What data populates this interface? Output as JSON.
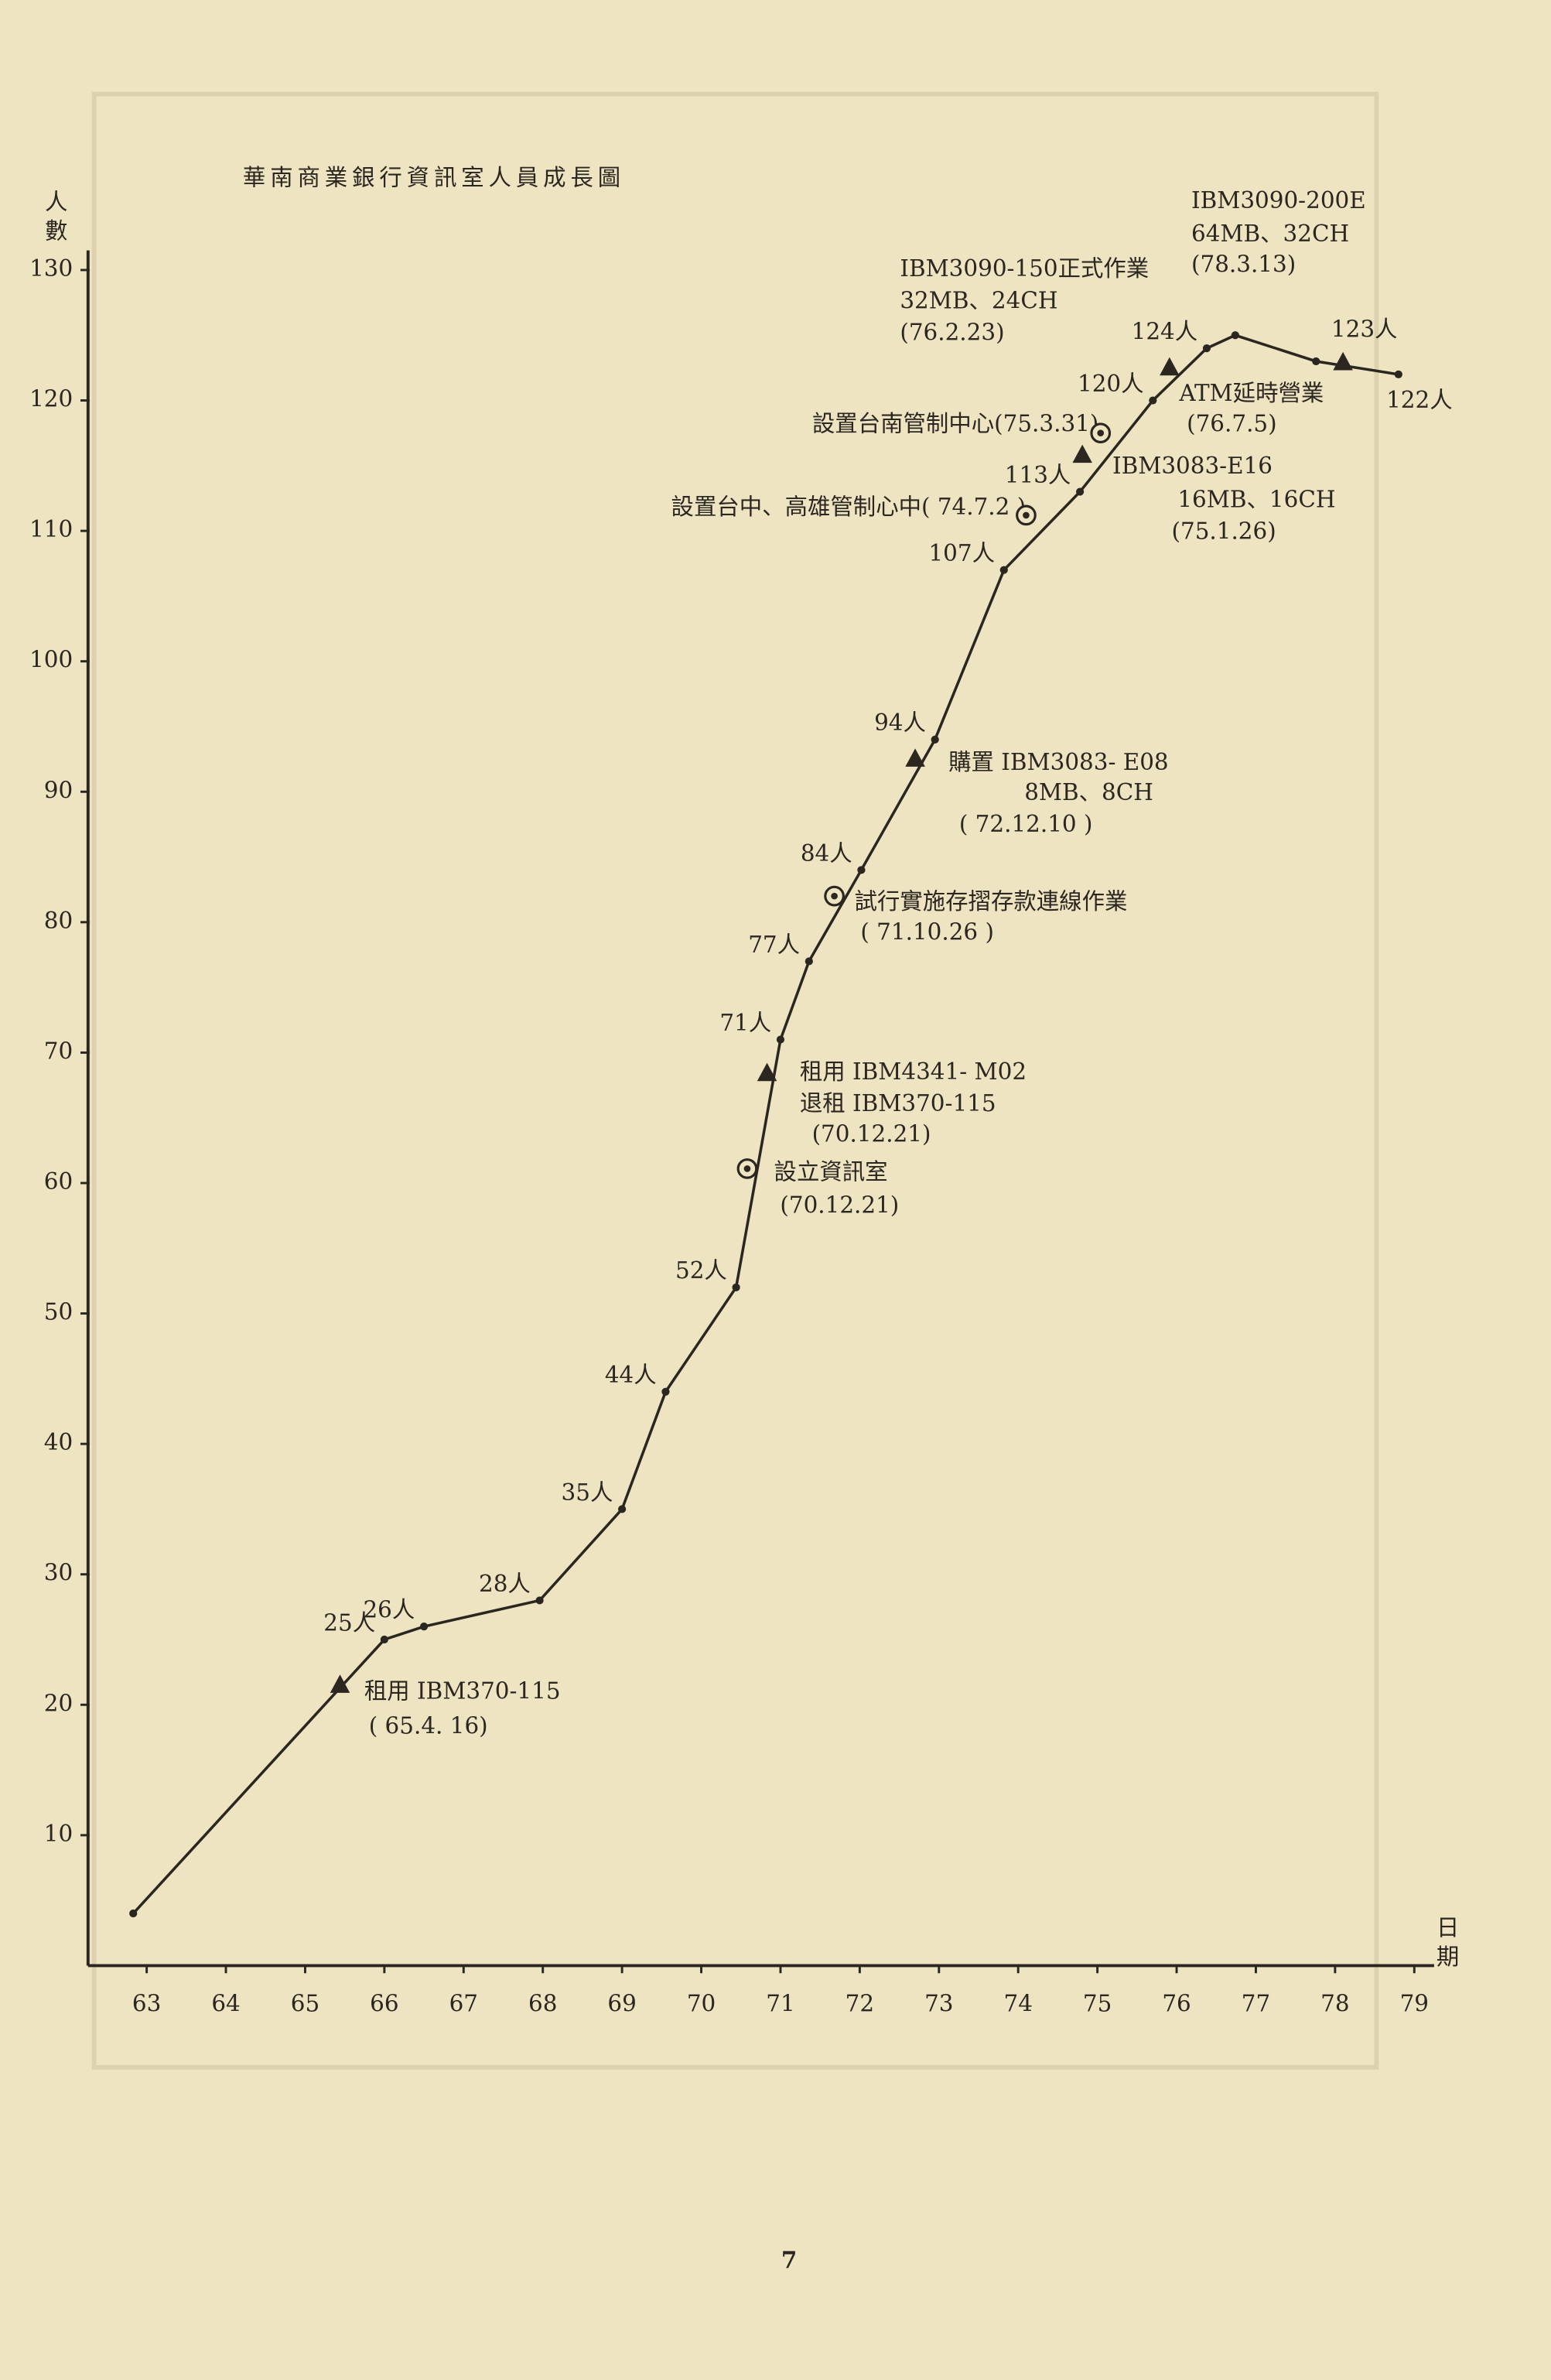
{
  "chart_data": {
    "type": "line",
    "title": "華南商業銀行資訊室人員成長圖",
    "ylabel": "人數",
    "xlabel": "日期",
    "page_number": "7",
    "color": "#2b2620",
    "xlim": [
      62.26,
      79.25
    ],
    "ylim": [
      0,
      131.5
    ],
    "xticks": [
      63,
      64,
      65,
      66,
      67,
      68,
      69,
      70,
      71,
      72,
      73,
      74,
      75,
      76,
      77,
      78,
      79
    ],
    "yticks": [
      10,
      20,
      30,
      40,
      50,
      60,
      70,
      80,
      90,
      100,
      110,
      120,
      130
    ],
    "x": [
      62.83,
      66.0,
      66.5,
      67.96,
      69.0,
      69.55,
      70.44,
      71.0,
      71.36,
      72.02,
      72.95,
      73.82,
      74.78,
      75.7,
      76.38,
      76.74,
      77.76,
      78.8
    ],
    "values": [
      4,
      25,
      26,
      28,
      35,
      44,
      52,
      71,
      77,
      84,
      94,
      107,
      113,
      120,
      124,
      125,
      123,
      122
    ],
    "value_labels": [
      null,
      "25人",
      "26人",
      "28人",
      "35人",
      "44人",
      "52人",
      "71人",
      "77人",
      "84人",
      "94人",
      "107人",
      "113人",
      "120人",
      "124人",
      null,
      "123人",
      "122人"
    ],
    "annotations": [
      {
        "text": [
          "租用 IBM370-115",
          "( 65.4. 16)"
        ],
        "marker": "triangle",
        "x": 65.44,
        "y": 21.5
      },
      {
        "text": [
          "設立資訊室",
          "(70.12.21)"
        ],
        "marker": "circle",
        "x": 70.58,
        "y": 61.1
      },
      {
        "text": [
          "租用 IBM4341- M02",
          "退租 IBM370-115",
          "(70.12.21)"
        ],
        "marker": "triangle",
        "x": 70.83,
        "y": 68.4
      },
      {
        "text": [
          "試行實施存摺存款連線作業",
          "( 71.10.26 )"
        ],
        "marker": "circle",
        "x": 71.68,
        "y": 82
      },
      {
        "text": [
          "購置 IBM3083- E08",
          "8MB、8CH",
          "( 72.12.10 )"
        ],
        "marker": "triangle",
        "x": 72.7,
        "y": 92.5
      },
      {
        "text": [
          "設置台中、高雄管制心中( 74.7.2 )"
        ],
        "marker": "circle",
        "x": 74.1,
        "y": 111.2
      },
      {
        "text": [
          "設置台南管制中心(75.3.31)"
        ],
        "marker": "circle",
        "x": 75.04,
        "y": 117.5
      },
      {
        "text": [
          "IBM3083-E16",
          "16MB、16CH",
          "(75.1.26)"
        ],
        "marker": "triangle",
        "x": 74.81,
        "y": 115.8
      },
      {
        "text": [
          "ATM延時營業",
          "(76.7.5)"
        ],
        "marker": "triangle",
        "x": 75.91,
        "y": 122.5
      },
      {
        "text": [
          "IBM3090-150正式作業",
          "32MB、24CH",
          "(76.2.23)"
        ]
      },
      {
        "text": [
          "IBM3090-200E",
          "64MB、32CH",
          "(78.3.13)"
        ],
        "marker": "triangle",
        "x": 78.1,
        "y": 122.9
      }
    ]
  }
}
